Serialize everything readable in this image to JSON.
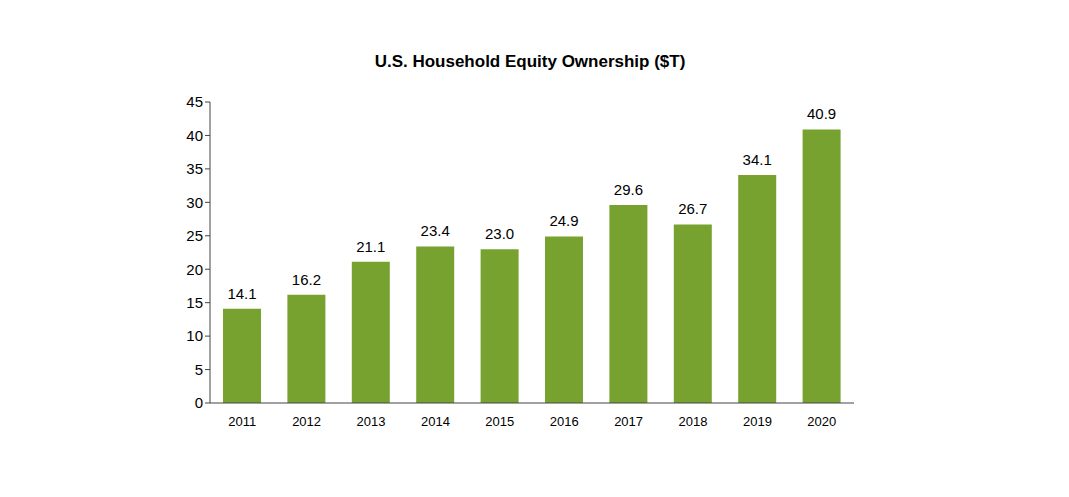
{
  "chart_data": {
    "type": "bar",
    "title": "U.S. Household Equity Ownership ($T)",
    "categories": [
      "2011",
      "2012",
      "2013",
      "2014",
      "2015",
      "2016",
      "2017",
      "2018",
      "2019",
      "2020"
    ],
    "values": [
      14.1,
      16.2,
      21.1,
      23.4,
      23.0,
      24.9,
      29.6,
      26.7,
      34.1,
      40.9
    ],
    "value_labels": [
      "14.1",
      "16.2",
      "21.1",
      "23.4",
      "23.0",
      "24.9",
      "29.6",
      "26.7",
      "34.1",
      "40.9"
    ],
    "color": "#77a22f",
    "ylim": [
      0,
      45
    ],
    "yticks": [
      0,
      5,
      10,
      15,
      20,
      25,
      30,
      35,
      40,
      45
    ],
    "grid": false,
    "data_labels": true
  }
}
